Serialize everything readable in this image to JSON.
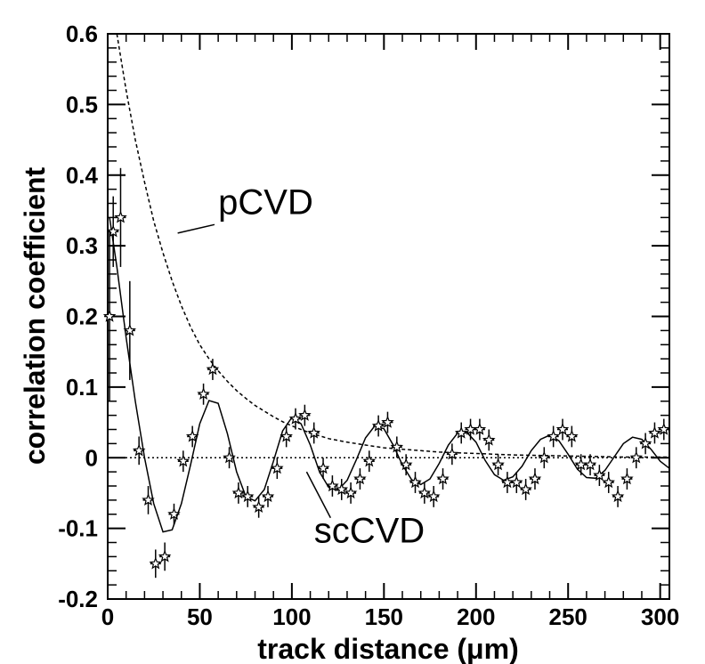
{
  "chart_data": {
    "type": "scatter",
    "title": "",
    "xlabel": "track distance (μm)",
    "ylabel": "correlation coefficient",
    "xlim": [
      0,
      305
    ],
    "ylim": [
      -0.2,
      0.6
    ],
    "xticks": [
      0,
      50,
      100,
      150,
      200,
      250,
      300
    ],
    "xtick_labels": [
      "0",
      "50",
      "100",
      "150",
      "200",
      "250",
      "300"
    ],
    "yticks": [
      -0.2,
      -0.1,
      0,
      0.1,
      0.2,
      0.3,
      0.4,
      0.5,
      0.6
    ],
    "ytick_labels": [
      "-0.2",
      "-0.1",
      "0",
      "0.1",
      "0.2",
      "0.3",
      "0.4",
      "0.5",
      "0.6"
    ],
    "grid": false,
    "annotations": [
      {
        "text": "pCVD",
        "x": 60,
        "y": 0.345,
        "pointer": [
          [
            58,
            0.33
          ],
          [
            38,
            0.318
          ]
        ]
      },
      {
        "text": "scCVD",
        "x": 112,
        "y": -0.12,
        "pointer": [
          [
            121,
            -0.085
          ],
          [
            108,
            -0.02
          ]
        ]
      }
    ],
    "series": [
      {
        "name": "scCVD data",
        "style": "stars-with-error-bars",
        "x": [
          1,
          3,
          7,
          12,
          17,
          22,
          26,
          31,
          36,
          41,
          46,
          52,
          57,
          66,
          71,
          76,
          82,
          87,
          92,
          97,
          102,
          107,
          112,
          117,
          122,
          127,
          132,
          137,
          142,
          147,
          152,
          157,
          162,
          167,
          172,
          177,
          182,
          187,
          192,
          197,
          202,
          207,
          212,
          217,
          222,
          227,
          232,
          237,
          242,
          247,
          252,
          257,
          262,
          267,
          272,
          277,
          282,
          287,
          292,
          297,
          302
        ],
        "y": [
          0.2,
          0.32,
          0.34,
          0.18,
          0.01,
          -0.06,
          -0.15,
          -0.14,
          -0.08,
          -0.005,
          0.03,
          0.09,
          0.125,
          0.0,
          -0.05,
          -0.055,
          -0.07,
          -0.055,
          -0.015,
          0.03,
          0.055,
          0.06,
          0.035,
          -0.015,
          -0.04,
          -0.045,
          -0.05,
          -0.03,
          -0.005,
          0.045,
          0.05,
          0.015,
          -0.01,
          -0.035,
          -0.05,
          -0.055,
          -0.03,
          0.005,
          0.035,
          0.04,
          0.04,
          0.025,
          -0.01,
          -0.035,
          -0.035,
          -0.045,
          -0.03,
          0.0,
          0.03,
          0.04,
          0.03,
          -0.01,
          -0.01,
          -0.025,
          -0.035,
          -0.055,
          -0.03,
          0.0,
          0.02,
          0.035,
          0.04
        ],
        "yerr": [
          0.12,
          0.05,
          0.07,
          0.07,
          0.02,
          0.02,
          0.02,
          0.02,
          0.015,
          0.015,
          0.015,
          0.015,
          0.015,
          0.015,
          0.015,
          0.015,
          0.015,
          0.015,
          0.015,
          0.015,
          0.015,
          0.015,
          0.015,
          0.015,
          0.015,
          0.015,
          0.015,
          0.015,
          0.015,
          0.015,
          0.015,
          0.015,
          0.015,
          0.015,
          0.015,
          0.015,
          0.015,
          0.015,
          0.015,
          0.015,
          0.015,
          0.015,
          0.015,
          0.015,
          0.015,
          0.015,
          0.015,
          0.015,
          0.015,
          0.015,
          0.015,
          0.015,
          0.015,
          0.015,
          0.015,
          0.015,
          0.015,
          0.015,
          0.015,
          0.015,
          0.015
        ]
      },
      {
        "name": "scCVD fit",
        "style": "solid",
        "x": [
          1,
          5,
          10,
          15,
          20,
          25,
          30,
          35,
          40,
          45,
          50,
          55,
          60,
          65,
          70,
          75,
          80,
          85,
          90,
          95,
          100,
          105,
          110,
          115,
          120,
          125,
          130,
          135,
          140,
          145,
          150,
          155,
          160,
          165,
          170,
          175,
          180,
          185,
          190,
          195,
          200,
          205,
          210,
          215,
          220,
          225,
          230,
          235,
          240,
          245,
          250,
          255,
          260,
          265,
          270,
          275,
          280,
          285,
          290,
          295,
          300,
          305
        ],
        "y": [
          0.34,
          0.27,
          0.17,
          0.08,
          0.0,
          -0.065,
          -0.105,
          -0.102,
          -0.065,
          -0.01,
          0.048,
          0.081,
          0.077,
          0.034,
          -0.02,
          -0.055,
          -0.061,
          -0.045,
          -0.005,
          0.038,
          0.057,
          0.048,
          0.018,
          -0.02,
          -0.042,
          -0.046,
          -0.032,
          -0.003,
          0.028,
          0.045,
          0.041,
          0.018,
          -0.01,
          -0.031,
          -0.038,
          -0.03,
          -0.008,
          0.018,
          0.035,
          0.036,
          0.022,
          -0.004,
          -0.024,
          -0.032,
          -0.027,
          -0.012,
          0.01,
          0.026,
          0.032,
          0.024,
          0.005,
          -0.016,
          -0.028,
          -0.029,
          -0.018,
          0.001,
          0.02,
          0.029,
          0.026,
          0.012,
          -0.005,
          -0.015
        ]
      },
      {
        "name": "pCVD fit",
        "style": "dashed",
        "x": [
          5,
          10,
          15,
          20,
          25,
          30,
          35,
          40,
          45,
          50,
          55,
          60,
          65,
          70,
          75,
          80,
          85,
          90,
          95,
          100,
          105,
          110,
          115,
          120,
          130,
          140,
          150,
          160,
          170,
          180,
          200,
          220,
          240,
          260,
          280,
          300,
          305
        ],
        "y": [
          0.6,
          0.52,
          0.45,
          0.39,
          0.335,
          0.29,
          0.25,
          0.215,
          0.185,
          0.16,
          0.14,
          0.123,
          0.108,
          0.095,
          0.084,
          0.074,
          0.066,
          0.058,
          0.051,
          0.045,
          0.04,
          0.035,
          0.031,
          0.027,
          0.022,
          0.018,
          0.014,
          0.012,
          0.01,
          0.008,
          0.006,
          0.004,
          0.003,
          0.002,
          0.001,
          0.001,
          0.001
        ]
      },
      {
        "name": "zero line",
        "style": "dotted",
        "x": [
          0,
          305
        ],
        "y": [
          0,
          0
        ]
      }
    ]
  }
}
